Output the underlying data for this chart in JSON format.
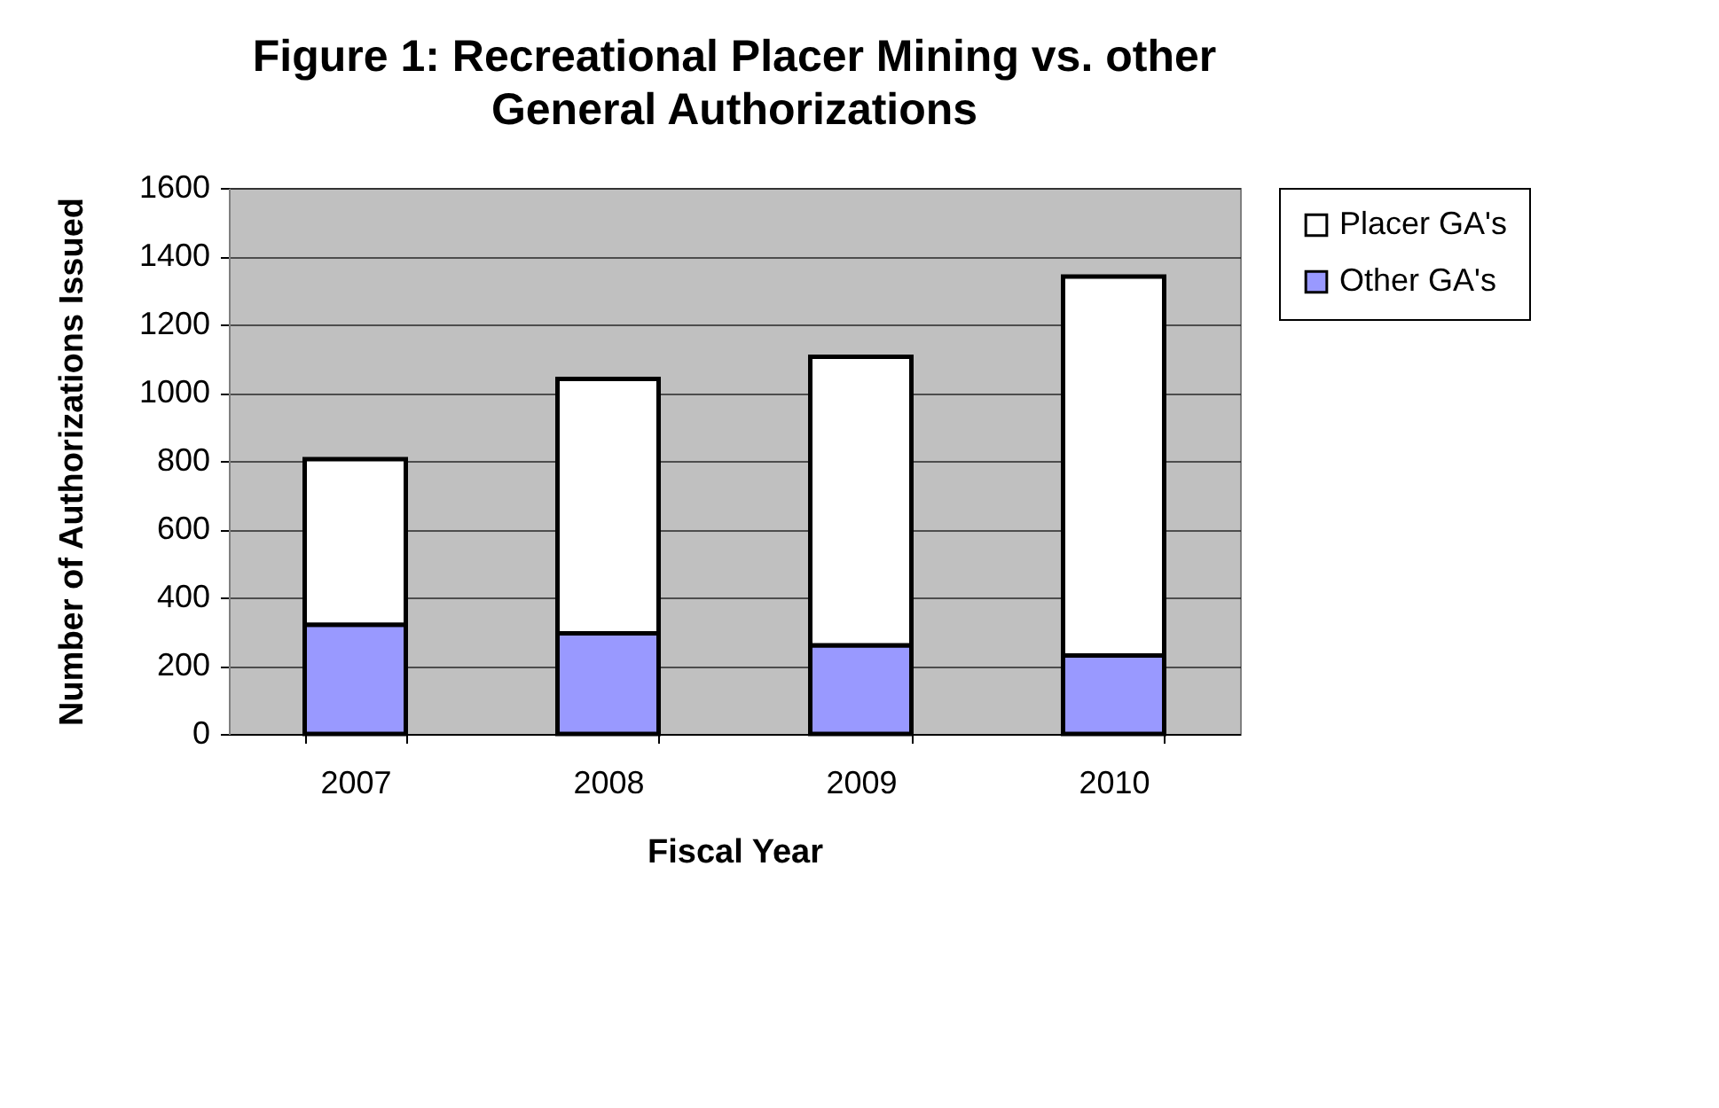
{
  "chart_data": {
    "type": "bar",
    "title": [
      "Figure 1: Recreational Placer Mining vs. other",
      "General Authorizations"
    ],
    "xlabel": "Fiscal Year",
    "ylabel": "Number of Authorizations Issued",
    "categories": [
      "2007",
      "2008",
      "2009",
      "2010"
    ],
    "stacked": true,
    "series": [
      {
        "name": "Other GA's",
        "color": "#9999ff",
        "values": [
          320,
          295,
          260,
          230
        ]
      },
      {
        "name": "Placer GA's",
        "color": "#ffffff",
        "values": [
          485,
          745,
          845,
          1110
        ]
      }
    ],
    "ylim": [
      0,
      1600
    ],
    "yticks": [
      0,
      200,
      400,
      600,
      800,
      1000,
      1200,
      1400,
      1600
    ],
    "grid": "y",
    "legend": "right"
  }
}
